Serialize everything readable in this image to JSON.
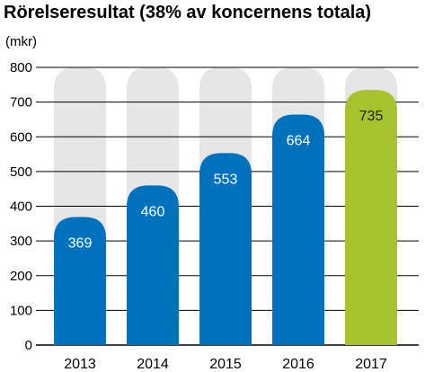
{
  "chart_data": {
    "type": "bar",
    "title": "Rörelseresultat (38% av koncernens totala)",
    "unit_label": "(mkr)",
    "xlabel": "",
    "ylabel": "",
    "categories": [
      "2013",
      "2014",
      "2015",
      "2016",
      "2017"
    ],
    "values": [
      369,
      460,
      553,
      664,
      735
    ],
    "value_labels": [
      "369",
      "460",
      "553",
      "664",
      "735"
    ],
    "ylim": [
      0,
      800
    ],
    "yticks": [
      0,
      100,
      200,
      300,
      400,
      500,
      600,
      700,
      800
    ],
    "ytick_labels": [
      "0",
      "100",
      "200",
      "300",
      "400",
      "500",
      "600",
      "700",
      "800"
    ],
    "grid": true,
    "legend": "none",
    "colors": {
      "bar": "#0071bc",
      "highlight_bar": "#a6c32e",
      "background_bar": "#e6e6e6",
      "value_label_default": "#ffffff",
      "value_label_highlight": "#1a1a1a"
    },
    "highlight_index": 4
  }
}
